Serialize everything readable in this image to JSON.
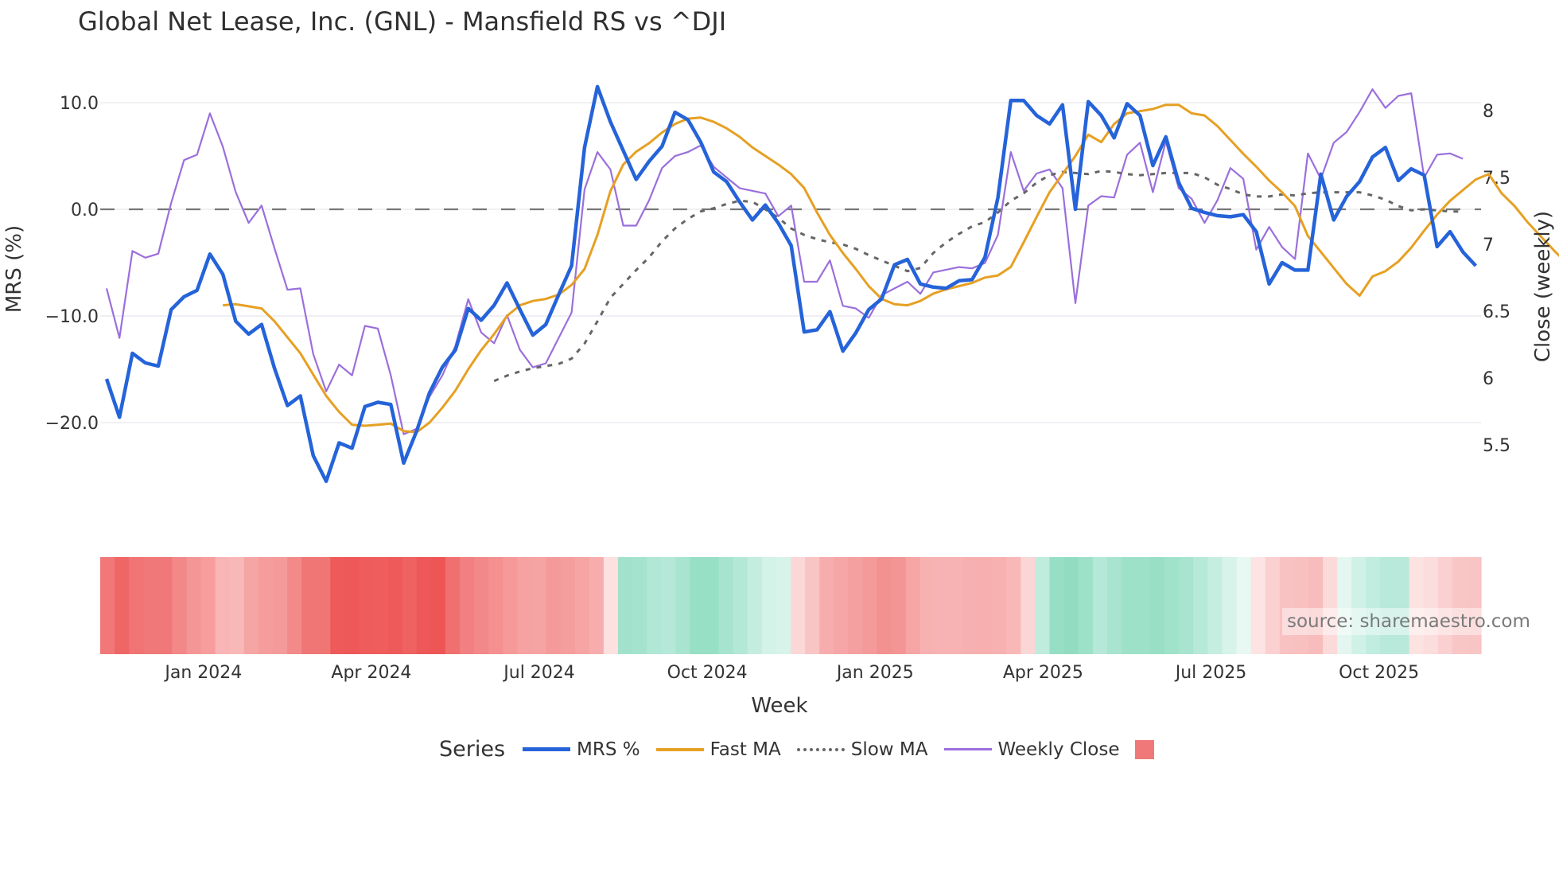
{
  "title": "Global Net Lease, Inc. (GNL) - Mansfield RS vs ^DJI",
  "source": "source: sharemaestro.com",
  "legend": {
    "title": "Series",
    "items": [
      {
        "label": "MRS %",
        "color": "#2563d9",
        "style": "solid"
      },
      {
        "label": "Fast MA",
        "color": "#e6a023",
        "style": "solid"
      },
      {
        "label": "Slow MA",
        "color": "#666666",
        "style": "dotted"
      },
      {
        "label": "Weekly Close",
        "color": "#9b6fdc",
        "style": "solid"
      },
      {
        "label": "",
        "color": "#f07878",
        "style": "square"
      }
    ]
  },
  "chart_data": {
    "type": "line",
    "title": "Global Net Lease, Inc. (GNL) - Mansfield RS vs ^DJI",
    "xlabel": "Week",
    "ylabel": "MRS (%)",
    "y2label": "Close (weekly)",
    "ylim": [
      -25.8,
      12.0
    ],
    "y2lim": [
      5.35,
      8.3
    ],
    "yticks": [
      "10.0",
      "0.0",
      "−10.0",
      "−20.0"
    ],
    "ytick_values": [
      10,
      0,
      -10,
      -20
    ],
    "y2ticks": [
      "8",
      "7.5",
      "7",
      "6.5",
      "6",
      "5.5"
    ],
    "y2tick_values": [
      8,
      7.5,
      7,
      6.5,
      6,
      5.5
    ],
    "xticks": [
      "Jan 2024",
      "Apr 2024",
      "Jul 2024",
      "Oct 2024",
      "Jan 2025",
      "Apr 2025",
      "Jul 2025",
      "Oct 2025"
    ],
    "xtick_index": [
      7.5,
      20.5,
      33.5,
      46.5,
      59.5,
      72.5,
      85.5,
      98.5
    ],
    "zero_line": 0,
    "grid": true,
    "series": [
      {
        "name": "MRS %",
        "axis": "y",
        "values": [
          -15.9,
          -19.5,
          -13.5,
          -14.4,
          -14.7,
          -9.4,
          -8.2,
          -7.6,
          -4.2,
          -6.1,
          -10.5,
          -11.7,
          -10.8,
          -14.9,
          -18.4,
          -17.5,
          -23.1,
          -25.5,
          -21.9,
          -22.4,
          -18.5,
          -18.1,
          -18.3,
          -23.8,
          -20.8,
          -17.2,
          -14.8,
          -13.2,
          -9.3,
          -10.4,
          -9.0,
          -6.9,
          -9.4,
          -11.8,
          -10.8,
          -8.0,
          -5.3,
          5.8,
          11.5,
          8.2,
          5.5,
          2.8,
          4.5,
          5.9,
          9.1,
          8.4,
          6.3,
          3.5,
          2.6,
          0.7,
          -1.0,
          0.4,
          -1.3,
          -3.4,
          -11.5,
          -11.3,
          -9.6,
          -13.3,
          -11.6,
          -9.4,
          -8.4,
          -5.2,
          -4.7,
          -7.0,
          -7.3,
          -7.4,
          -6.7,
          -6.6,
          -4.5,
          1.1,
          10.2,
          10.2,
          8.8,
          8.0,
          9.8,
          0.0,
          10.1,
          8.8,
          6.7,
          9.9,
          8.8,
          4.1,
          6.8,
          2.5,
          0.1,
          -0.3,
          -0.6,
          -0.7,
          -0.5,
          -2.1,
          -7.0,
          -5.0,
          -5.7,
          -5.7,
          3.3,
          -1.0,
          1.2,
          2.6,
          4.9,
          5.8,
          2.7,
          3.8,
          3.2,
          -3.5,
          -2.1,
          -4.0,
          -5.3
        ]
      },
      {
        "name": "Fast MA",
        "axis": "y",
        "start": 9,
        "values": [
          -9.0,
          -8.9,
          -9.1,
          -9.3,
          -10.5,
          -12.0,
          -13.5,
          -15.5,
          -17.5,
          -19.0,
          -20.2,
          -20.3,
          -20.2,
          -20.1,
          -20.8,
          -20.9,
          -20.0,
          -18.6,
          -17.0,
          -15.0,
          -13.2,
          -11.7,
          -10.0,
          -9.0,
          -8.6,
          -8.4,
          -8.0,
          -7.1,
          -5.6,
          -2.4,
          1.7,
          4.2,
          5.4,
          6.2,
          7.2,
          8.0,
          8.5,
          8.6,
          8.2,
          7.6,
          6.8,
          5.8,
          5.0,
          4.2,
          3.3,
          2.0,
          -0.3,
          -2.4,
          -4.1,
          -5.6,
          -7.2,
          -8.4,
          -8.9,
          -9.0,
          -8.6,
          -7.9,
          -7.5,
          -7.2,
          -6.9,
          -6.4,
          -6.2,
          -5.4,
          -3.1,
          -0.7,
          1.6,
          3.3,
          5.0,
          7.0,
          6.3,
          8.0,
          9.0,
          9.2,
          9.4,
          9.8,
          9.8,
          9.0,
          8.8,
          7.8,
          6.5,
          5.2,
          4.0,
          2.7,
          1.6,
          0.3,
          -2.5,
          -4.0,
          -5.5,
          -7.0,
          -8.1,
          -6.3,
          -5.8,
          -4.9,
          -3.6,
          -2.0,
          -0.5,
          0.8,
          1.8,
          2.8,
          3.3,
          1.5,
          0.3,
          -1.2,
          -2.5,
          -3.8,
          -5.0,
          -6.2
        ]
      },
      {
        "name": "Slow MA",
        "axis": "y",
        "start": 30,
        "values": [
          -16.1,
          -15.6,
          -15.2,
          -14.9,
          -14.7,
          -14.5,
          -14.0,
          -12.6,
          -10.5,
          -8.3,
          -7.0,
          -5.7,
          -4.5,
          -3.0,
          -1.8,
          -0.9,
          -0.2,
          0.1,
          0.5,
          0.8,
          0.7,
          0.0,
          -0.8,
          -1.8,
          -2.4,
          -2.8,
          -3.1,
          -3.3,
          -3.7,
          -4.3,
          -4.8,
          -5.3,
          -5.8,
          -5.5,
          -4.1,
          -3.1,
          -2.3,
          -1.6,
          -1.2,
          -0.3,
          0.8,
          1.5,
          2.5,
          3.2,
          3.5,
          3.4,
          3.3,
          3.6,
          3.5,
          3.3,
          3.2,
          3.3,
          3.4,
          3.4,
          3.4,
          3.0,
          2.3,
          1.9,
          1.4,
          1.2,
          1.2,
          1.4,
          1.3,
          1.5,
          1.6,
          1.6,
          1.6,
          1.6,
          1.3,
          0.9,
          0.3,
          -0.1,
          0.0,
          -0.1,
          -0.2,
          -0.2
        ]
      },
      {
        "name": "Weekly Close",
        "axis": "y2",
        "values": [
          6.67,
          6.3,
          6.95,
          6.9,
          6.93,
          7.31,
          7.63,
          7.67,
          7.98,
          7.73,
          7.39,
          7.16,
          7.29,
          6.97,
          6.66,
          6.67,
          6.18,
          5.9,
          6.1,
          6.02,
          6.39,
          6.37,
          6.02,
          5.58,
          5.62,
          5.86,
          6.02,
          6.24,
          6.59,
          6.34,
          6.26,
          6.47,
          6.21,
          6.08,
          6.11,
          6.3,
          6.49,
          7.41,
          7.69,
          7.56,
          7.14,
          7.14,
          7.33,
          7.57,
          7.66,
          7.69,
          7.74,
          7.58,
          7.5,
          7.42,
          7.4,
          7.38,
          7.21,
          7.29,
          6.72,
          6.72,
          6.88,
          6.54,
          6.52,
          6.45,
          6.62,
          6.67,
          6.72,
          6.63,
          6.79,
          6.81,
          6.83,
          6.82,
          6.86,
          7.07,
          7.69,
          7.4,
          7.53,
          7.56,
          7.42,
          6.56,
          7.29,
          7.36,
          7.35,
          7.67,
          7.76,
          7.39,
          7.77,
          7.42,
          7.34,
          7.16,
          7.33,
          7.57,
          7.49,
          6.96,
          7.13,
          6.98,
          6.89,
          7.68,
          7.49,
          7.76,
          7.84,
          7.99,
          8.16,
          8.02,
          8.11,
          8.13,
          7.5,
          7.67,
          7.68,
          7.64
        ]
      },
      {
        "name": "MRS regime heatmap",
        "axis": "strip",
        "colors": [
          "#f07878",
          "#ee6666",
          "#f07474",
          "#f07878",
          "#f07878",
          "#f38888",
          "#f59696",
          "#f79d9d",
          "#f9b5b5",
          "#f9b8b8",
          "#f6a5a5",
          "#f59c9c",
          "#f59a9a",
          "#f38a8a",
          "#f07575",
          "#f07676",
          "#ee5a5a",
          "#ee5858",
          "#ef5c5c",
          "#ef5d5d",
          "#ee5a5a",
          "#ef6262",
          "#ee5858",
          "#ee5656",
          "#f07070",
          "#f28080",
          "#f38888",
          "#f49090",
          "#f59999",
          "#f6a2a2",
          "#f6a3a3",
          "#f59a9a",
          "#f59e9e",
          "#f6a4a4",
          "#f7adad",
          "#fde0e0",
          "#a2e2cc",
          "#a5e3ce",
          "#b1e7d5",
          "#b5e8d8",
          "#a9e4d1",
          "#97dfc5",
          "#97dfc5",
          "#a7e4cf",
          "#b3e8d6",
          "#c4ede0",
          "#d3f2e8",
          "#d8f3ea",
          "#fbd7d7",
          "#f9c4c4",
          "#f7adad",
          "#f6a6a6",
          "#f5a0a0",
          "#f59a9a",
          "#f39090",
          "#f49595",
          "#f6a5a5",
          "#f7b1b1",
          "#f7b3b3",
          "#f7b3b3",
          "#f7b0b0",
          "#f7afaf",
          "#f7b1b1",
          "#f8b8b8",
          "#fad6d6",
          "#bfecdd",
          "#96dec4",
          "#92ddc2",
          "#9ee1c9",
          "#b5e8d8",
          "#a8e4d0",
          "#9ee1c9",
          "#9ee1c9",
          "#98dfc6",
          "#a1e2cb",
          "#a8e4d0",
          "#b7e9d9",
          "#c5eee1",
          "#d7f3ea",
          "#e8f8f2",
          "#fde3e3",
          "#fbd0d0",
          "#f9c2c2",
          "#f9c0c0",
          "#f8bcbc",
          "#fcdada",
          "#e3f6ef",
          "#d0f1e6",
          "#c0ede0",
          "#b8e9da",
          "#b8e9da",
          "#fde2e2",
          "#fcdddd",
          "#fbd0d0",
          "#f9c6c6",
          "#f9c4c4"
        ]
      }
    ]
  }
}
